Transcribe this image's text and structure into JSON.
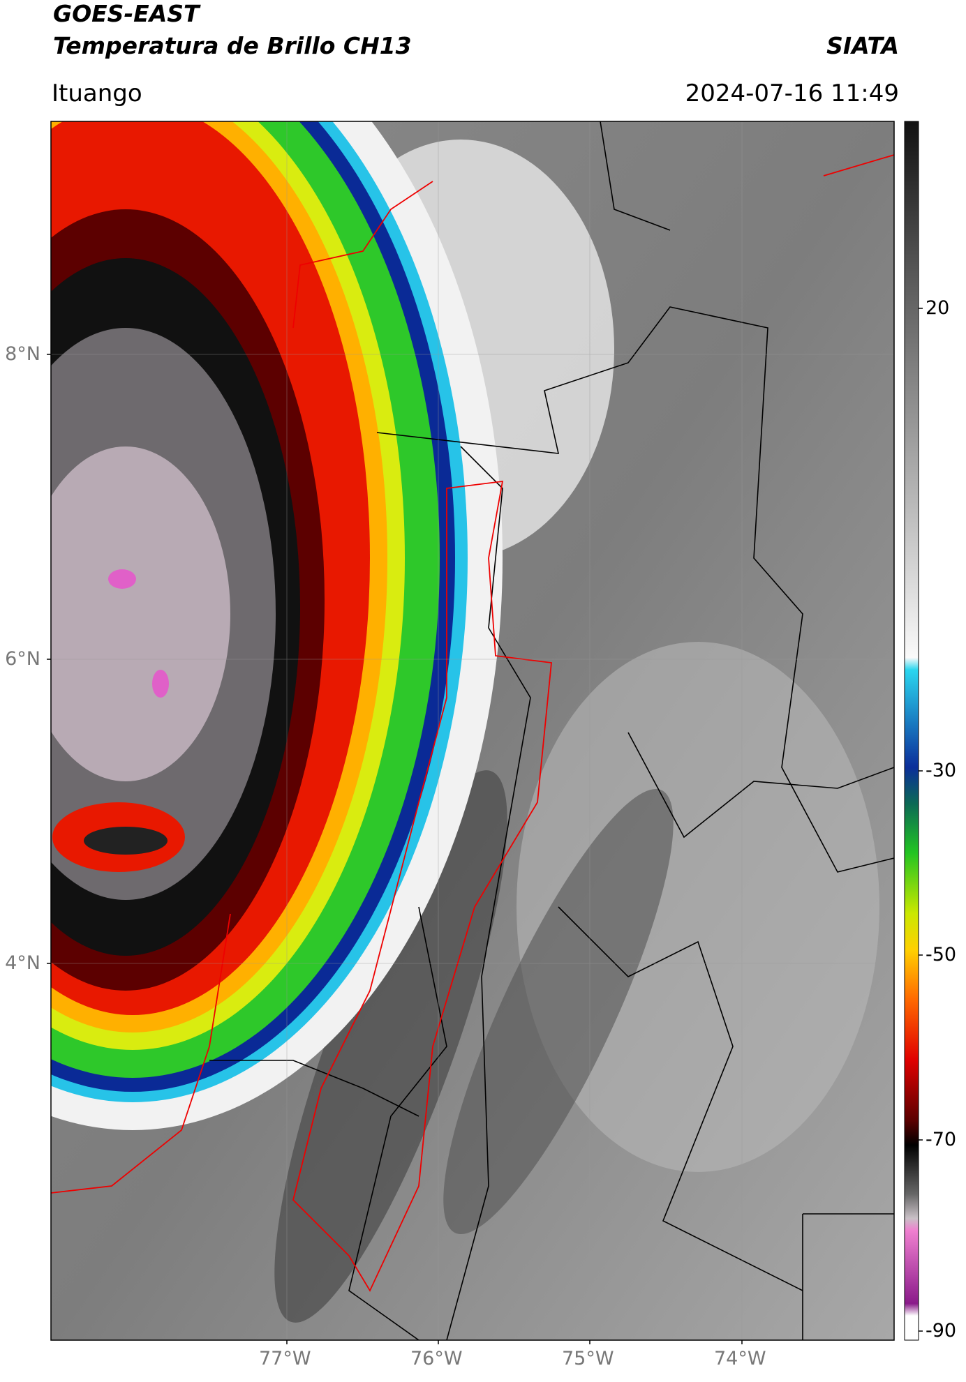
{
  "header": {
    "title": "GOES-EAST",
    "subtitle": "Temperatura de Brillo CH13",
    "source": "SIATA",
    "location": "Ituango",
    "datetime": "2024-07-16 11:49"
  },
  "map": {
    "lat_labels": [
      "8°N",
      "6°N",
      "4°N"
    ],
    "lon_labels": [
      "77°W",
      "76°W",
      "75°W",
      "74°W"
    ]
  },
  "colorbar": {
    "labels": [
      "20",
      "-30",
      "-50",
      "-70",
      "-90"
    ]
  }
}
